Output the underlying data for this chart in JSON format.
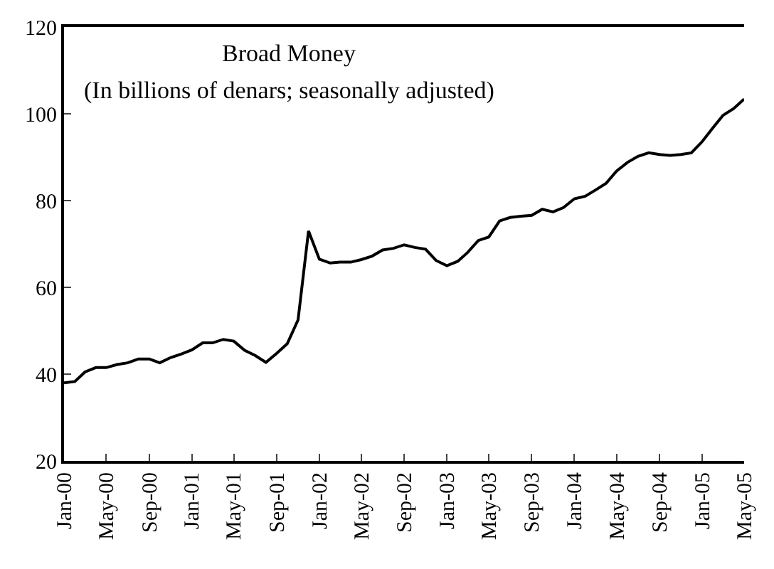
{
  "chart_data": {
    "type": "line",
    "title": "Broad Money",
    "subtitle": "(In billions of denars; seasonally adjusted)",
    "x": [
      "2000-01",
      "2000-02",
      "2000-03",
      "2000-04",
      "2000-05",
      "2000-06",
      "2000-07",
      "2000-08",
      "2000-09",
      "2000-10",
      "2000-11",
      "2000-12",
      "2001-01",
      "2001-02",
      "2001-03",
      "2001-04",
      "2001-05",
      "2001-06",
      "2001-07",
      "2001-08",
      "2001-09",
      "2001-10",
      "2001-11",
      "2001-12",
      "2002-01",
      "2002-02",
      "2002-03",
      "2002-04",
      "2002-05",
      "2002-06",
      "2002-07",
      "2002-08",
      "2002-09",
      "2002-10",
      "2002-11",
      "2002-12",
      "2003-01",
      "2003-02",
      "2003-03",
      "2003-04",
      "2003-05",
      "2003-06",
      "2003-07",
      "2003-08",
      "2003-09",
      "2003-10",
      "2003-11",
      "2003-12",
      "2004-01",
      "2004-02",
      "2004-03",
      "2004-04",
      "2004-05",
      "2004-06",
      "2004-07",
      "2004-08",
      "2004-09",
      "2004-10",
      "2004-11",
      "2004-12",
      "2005-01",
      "2005-02",
      "2005-03",
      "2005-04",
      "2005-05"
    ],
    "series": [
      {
        "color": "#000000",
        "values": [
          38,
          38.3,
          40.5,
          41.5,
          41.5,
          42.2,
          42.6,
          43.5,
          43.5,
          42.6,
          43.8,
          44.6,
          45.6,
          47.2,
          47.2,
          48,
          47.6,
          45.5,
          44.3,
          42.7,
          44.8,
          47,
          52.5,
          73,
          66.5,
          65.6,
          65.8,
          65.8,
          66.4,
          67.2,
          68.6,
          69,
          69.8,
          69.2,
          68.8,
          66.2,
          65,
          66,
          68,
          70.8,
          71.6,
          75.3,
          76.1,
          76.4,
          76.6,
          78,
          77.4,
          78.4,
          80.4,
          81,
          82.4,
          84,
          86.8,
          88.8,
          90.2,
          91,
          90.6,
          90.4,
          90.6,
          91,
          93.6,
          96.8,
          99.6,
          101.2,
          103.4
        ]
      }
    ],
    "xlim": [
      "2000-01",
      "2005-05"
    ],
    "xticks": [
      {
        "value": "2000-01",
        "label": "Jan-00"
      },
      {
        "value": "2000-05",
        "label": "May-00"
      },
      {
        "value": "2000-09",
        "label": "Sep-00"
      },
      {
        "value": "2001-01",
        "label": "Jan-01"
      },
      {
        "value": "2001-05",
        "label": "May-01"
      },
      {
        "value": "2001-09",
        "label": "Sep-01"
      },
      {
        "value": "2002-01",
        "label": "Jan-02"
      },
      {
        "value": "2002-05",
        "label": "May-02"
      },
      {
        "value": "2002-09",
        "label": "Sep-02"
      },
      {
        "value": "2003-01",
        "label": "Jan-03"
      },
      {
        "value": "2003-05",
        "label": "May-03"
      },
      {
        "value": "2003-09",
        "label": "Sep-03"
      },
      {
        "value": "2004-01",
        "label": "Jan-04"
      },
      {
        "value": "2004-05",
        "label": "May-04"
      },
      {
        "value": "2004-09",
        "label": "Sep-04"
      },
      {
        "value": "2005-01",
        "label": "Jan-05"
      },
      {
        "value": "2005-05",
        "label": "May-05"
      }
    ],
    "ylim": [
      20,
      120
    ],
    "yticks": [
      20,
      40,
      60,
      80,
      100,
      120
    ],
    "marker": "none",
    "line_style": "solid"
  }
}
